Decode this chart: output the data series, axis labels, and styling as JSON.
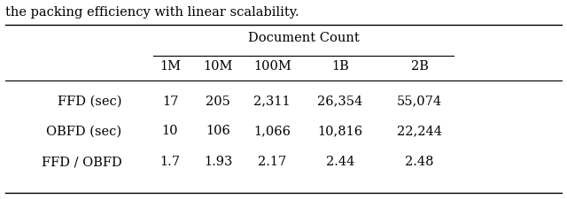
{
  "caption_text": "the packing efficiency with linear scalability.",
  "header_group": "Document Count",
  "col_headers": [
    "1M",
    "10M",
    "100M",
    "1B",
    "2B"
  ],
  "row_labels": [
    "FFD (sec)",
    "OBFD (sec)",
    "FFD / OBFD"
  ],
  "table_data": [
    [
      "17",
      "205",
      "2,311",
      "26,354",
      "55,074"
    ],
    [
      "10",
      "106",
      "1,066",
      "10,816",
      "22,244"
    ],
    [
      "1.7",
      "1.93",
      "2.17",
      "2.44",
      "2.48"
    ]
  ],
  "font_size": 10.5,
  "caption_font_size": 10.5,
  "fig_width": 6.4,
  "fig_height": 2.25,
  "dpi": 100
}
